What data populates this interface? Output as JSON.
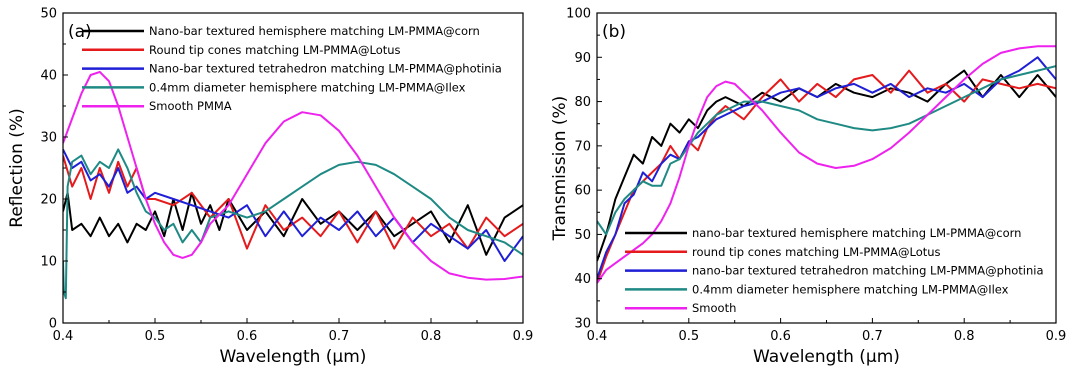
{
  "chart_data": [
    {
      "type": "line",
      "panel_label": "(a)",
      "xlabel": "Wavelength (μm)",
      "ylabel": "Reflection (%)",
      "xlim": [
        0.4,
        0.9
      ],
      "ylim": [
        0,
        50
      ],
      "x_ticks": [
        "0.4",
        "0.5",
        "0.6",
        "0.7",
        "0.8",
        "0.9"
      ],
      "y_ticks": [
        "0",
        "10",
        "20",
        "30",
        "40",
        "50"
      ],
      "legend_position": "top",
      "series": [
        {
          "name": "Nano-bar textured hemisphere matching LM-PMMA@corn",
          "color": "#000000",
          "x": [
            0.4,
            0.405,
            0.41,
            0.42,
            0.43,
            0.44,
            0.45,
            0.46,
            0.47,
            0.48,
            0.49,
            0.5,
            0.51,
            0.52,
            0.53,
            0.54,
            0.55,
            0.56,
            0.57,
            0.58,
            0.6,
            0.62,
            0.64,
            0.66,
            0.68,
            0.7,
            0.72,
            0.74,
            0.76,
            0.78,
            0.8,
            0.82,
            0.84,
            0.86,
            0.88,
            0.9
          ],
          "y": [
            18,
            21,
            15,
            16,
            14,
            17,
            14,
            16,
            13,
            16,
            15,
            18,
            14,
            20,
            15,
            21,
            16,
            19,
            15,
            20,
            15,
            18,
            14,
            20,
            16,
            18,
            15,
            18,
            14,
            16,
            18,
            13,
            19,
            11,
            17,
            19
          ]
        },
        {
          "name": "Round tip cones matching LM-PMMA@Lotus",
          "color": "#e41a1c",
          "x": [
            0.4,
            0.41,
            0.42,
            0.43,
            0.44,
            0.45,
            0.46,
            0.47,
            0.48,
            0.49,
            0.5,
            0.52,
            0.54,
            0.56,
            0.58,
            0.6,
            0.62,
            0.64,
            0.66,
            0.68,
            0.7,
            0.72,
            0.74,
            0.76,
            0.78,
            0.8,
            0.82,
            0.84,
            0.86,
            0.88,
            0.9
          ],
          "y": [
            27,
            22,
            25,
            20,
            25,
            21,
            26,
            22,
            25,
            20,
            20,
            19,
            21,
            17,
            20,
            12,
            19,
            15,
            17,
            14,
            18,
            13,
            18,
            12,
            17,
            14,
            16,
            12,
            17,
            14,
            16
          ]
        },
        {
          "name": "Nano-bar textured tetrahedron matching LM-PMMA@photinia",
          "color": "#1f1fd6",
          "x": [
            0.4,
            0.41,
            0.42,
            0.43,
            0.44,
            0.45,
            0.46,
            0.47,
            0.48,
            0.49,
            0.5,
            0.52,
            0.54,
            0.56,
            0.58,
            0.6,
            0.62,
            0.64,
            0.66,
            0.68,
            0.7,
            0.72,
            0.74,
            0.76,
            0.78,
            0.8,
            0.82,
            0.84,
            0.86,
            0.88,
            0.9
          ],
          "y": [
            28,
            25,
            26,
            23,
            24,
            22,
            25,
            21,
            22,
            20,
            21,
            20,
            19,
            18,
            17,
            19,
            14,
            18,
            14,
            17,
            15,
            18,
            14,
            17,
            13,
            16,
            14,
            12,
            15,
            10,
            14
          ]
        },
        {
          "name": "0.4mm diameter hemisphere matching LM-PMMA@Ilex",
          "color": "#1f8a84",
          "x": [
            0.4,
            0.401,
            0.403,
            0.405,
            0.41,
            0.42,
            0.43,
            0.44,
            0.45,
            0.46,
            0.47,
            0.48,
            0.49,
            0.5,
            0.51,
            0.52,
            0.53,
            0.54,
            0.55,
            0.56,
            0.58,
            0.6,
            0.62,
            0.64,
            0.66,
            0.68,
            0.7,
            0.72,
            0.74,
            0.76,
            0.78,
            0.8,
            0.82,
            0.84,
            0.86,
            0.88,
            0.9
          ],
          "y": [
            10,
            5,
            4,
            22,
            26,
            27,
            24,
            26,
            25,
            28,
            25,
            21,
            18,
            17,
            15,
            16,
            13,
            15,
            13,
            17,
            18,
            17,
            18,
            20,
            22,
            24,
            25.5,
            26,
            25.5,
            24,
            22,
            20,
            17,
            15,
            14,
            13,
            11
          ]
        },
        {
          "name": "Smooth PMMA",
          "color": "#ee22ee",
          "x": [
            0.4,
            0.41,
            0.42,
            0.43,
            0.44,
            0.45,
            0.46,
            0.47,
            0.48,
            0.49,
            0.5,
            0.51,
            0.52,
            0.53,
            0.54,
            0.55,
            0.56,
            0.58,
            0.6,
            0.62,
            0.64,
            0.66,
            0.68,
            0.7,
            0.72,
            0.74,
            0.76,
            0.78,
            0.8,
            0.82,
            0.84,
            0.86,
            0.88,
            0.9
          ],
          "y": [
            29,
            33,
            37,
            40,
            40.5,
            39,
            35,
            30,
            25,
            20,
            16,
            13,
            11,
            10.5,
            11,
            13,
            16,
            19,
            24,
            29,
            32.5,
            34,
            33.5,
            31,
            27,
            22,
            17,
            13,
            10,
            8,
            7.3,
            7,
            7.1,
            7.5
          ]
        }
      ]
    },
    {
      "type": "line",
      "panel_label": "(b)",
      "xlabel": "Wavelength (μm)",
      "ylabel": "Transmission (%)",
      "xlim": [
        0.4,
        0.9
      ],
      "ylim": [
        30,
        100
      ],
      "x_ticks": [
        "0.4",
        "0.5",
        "0.6",
        "0.7",
        "0.8",
        "0.9"
      ],
      "y_ticks": [
        "30",
        "40",
        "50",
        "60",
        "70",
        "80",
        "90",
        "100"
      ],
      "legend_position": "bottom",
      "series": [
        {
          "name": "nano-bar textured hemisphere matching LM-PMMA@corn",
          "color": "#000000",
          "x": [
            0.4,
            0.41,
            0.42,
            0.43,
            0.44,
            0.45,
            0.46,
            0.47,
            0.48,
            0.49,
            0.5,
            0.51,
            0.52,
            0.53,
            0.54,
            0.56,
            0.58,
            0.6,
            0.62,
            0.64,
            0.66,
            0.68,
            0.7,
            0.72,
            0.74,
            0.76,
            0.78,
            0.8,
            0.82,
            0.84,
            0.86,
            0.88,
            0.9
          ],
          "y": [
            44,
            50,
            58,
            63,
            68,
            66,
            72,
            70,
            75,
            73,
            76,
            74,
            78,
            80,
            81,
            79,
            82,
            80,
            83,
            81,
            84,
            82,
            81,
            83,
            82,
            80,
            84,
            87,
            81,
            86,
            81,
            86,
            81
          ]
        },
        {
          "name": "round tip cones matching LM-PMMA@Lotus",
          "color": "#e41a1c",
          "x": [
            0.4,
            0.41,
            0.42,
            0.43,
            0.44,
            0.45,
            0.46,
            0.47,
            0.48,
            0.49,
            0.5,
            0.51,
            0.52,
            0.53,
            0.54,
            0.56,
            0.58,
            0.6,
            0.62,
            0.64,
            0.66,
            0.68,
            0.7,
            0.72,
            0.74,
            0.76,
            0.78,
            0.8,
            0.82,
            0.84,
            0.86,
            0.88,
            0.9
          ],
          "y": [
            39,
            45,
            50,
            55,
            60,
            62,
            64,
            66,
            70,
            67,
            71,
            69,
            74,
            77,
            79,
            76,
            81,
            85,
            80,
            84,
            81,
            85,
            86,
            82,
            87,
            82,
            84,
            80,
            85,
            84,
            83,
            84,
            83
          ]
        },
        {
          "name": "nano-bar textured tetrahedron matching LM-PMMA@photinia",
          "color": "#1f1fd6",
          "x": [
            0.4,
            0.41,
            0.42,
            0.43,
            0.44,
            0.45,
            0.46,
            0.47,
            0.48,
            0.49,
            0.5,
            0.51,
            0.52,
            0.53,
            0.54,
            0.56,
            0.58,
            0.6,
            0.62,
            0.64,
            0.66,
            0.68,
            0.7,
            0.72,
            0.74,
            0.76,
            0.78,
            0.8,
            0.82,
            0.84,
            0.86,
            0.88,
            0.9
          ],
          "y": [
            40,
            46,
            50,
            57,
            59,
            64,
            62,
            66,
            68,
            67,
            71,
            72,
            74,
            76,
            77,
            79,
            80,
            82,
            83,
            81,
            83,
            84,
            82,
            84,
            81,
            83,
            82,
            84,
            81,
            85,
            87,
            90,
            85
          ]
        },
        {
          "name": "0.4mm diameter hemisphere matching LM-PMMA@Ilex",
          "color": "#1f8a84",
          "x": [
            0.4,
            0.41,
            0.42,
            0.43,
            0.44,
            0.45,
            0.46,
            0.47,
            0.48,
            0.49,
            0.5,
            0.51,
            0.52,
            0.53,
            0.54,
            0.56,
            0.58,
            0.6,
            0.62,
            0.64,
            0.66,
            0.68,
            0.7,
            0.72,
            0.74,
            0.76,
            0.78,
            0.8,
            0.82,
            0.84,
            0.86,
            0.88,
            0.9
          ],
          "y": [
            53,
            50,
            55,
            58,
            60,
            62,
            61,
            61,
            66,
            67,
            70,
            73,
            75,
            77,
            78,
            80,
            80,
            79,
            78,
            76,
            75,
            74,
            73.5,
            74,
            75,
            77,
            79,
            81,
            83,
            85,
            86,
            87,
            88
          ]
        },
        {
          "name": "Smooth",
          "color": "#ee22ee",
          "x": [
            0.4,
            0.41,
            0.42,
            0.43,
            0.44,
            0.45,
            0.46,
            0.47,
            0.48,
            0.49,
            0.5,
            0.51,
            0.52,
            0.53,
            0.54,
            0.55,
            0.56,
            0.58,
            0.6,
            0.62,
            0.64,
            0.66,
            0.68,
            0.7,
            0.72,
            0.74,
            0.76,
            0.78,
            0.8,
            0.82,
            0.84,
            0.86,
            0.88,
            0.9
          ],
          "y": [
            39,
            42,
            43.5,
            45,
            46.5,
            48,
            50,
            53,
            57,
            63,
            70,
            76,
            81,
            83.5,
            84.5,
            84,
            82,
            78,
            73,
            68.5,
            66,
            65,
            65.5,
            67,
            69.5,
            73,
            77,
            81,
            85,
            88.5,
            91,
            92,
            92.5,
            92.5
          ]
        }
      ]
    }
  ]
}
